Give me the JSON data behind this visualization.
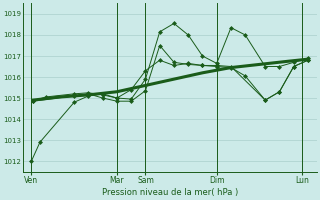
{
  "bg_color": "#cceae8",
  "grid_color": "#aacfcc",
  "line_color": "#1a5c1a",
  "xlabel_text": "Pression niveau de la mer( hPa )",
  "ylim": [
    1011.5,
    1019.5
  ],
  "yticks": [
    1012,
    1013,
    1014,
    1015,
    1016,
    1017,
    1018,
    1019
  ],
  "xtick_labels": [
    "Ven",
    "Mar",
    "Sam",
    "Dim",
    "Lun"
  ],
  "xtick_positions": [
    0.0,
    3.0,
    4.0,
    6.5,
    9.5
  ],
  "vlines_x": [
    0.0,
    3.0,
    4.0,
    6.5,
    9.5
  ],
  "xlim": [
    -0.3,
    10.0
  ],
  "s1_x": [
    0.0,
    0.3,
    1.5,
    2.0,
    2.5,
    3.0,
    3.5,
    4.0,
    4.5,
    5.0,
    5.5,
    6.0,
    6.5,
    7.0,
    7.5,
    8.2,
    8.7,
    9.2,
    9.7
  ],
  "s1_y": [
    1012.0,
    1012.9,
    1014.8,
    1015.1,
    1015.2,
    1015.0,
    1014.95,
    1015.9,
    1018.15,
    1018.55,
    1018.0,
    1017.0,
    1016.65,
    1018.35,
    1018.0,
    1016.5,
    1016.5,
    1016.7,
    1016.9
  ],
  "s2_x": [
    0.05,
    1.5,
    2.0,
    2.5,
    3.0,
    3.5,
    4.0,
    4.5,
    5.0,
    5.5,
    6.0,
    6.5,
    7.0,
    7.5,
    8.2,
    8.7,
    9.2,
    9.7
  ],
  "s2_y": [
    1014.85,
    1015.1,
    1015.2,
    1015.0,
    1014.85,
    1014.85,
    1015.35,
    1017.5,
    1016.7,
    1016.6,
    1016.55,
    1016.5,
    1016.45,
    1016.05,
    1014.9,
    1015.3,
    1016.5,
    1016.8
  ],
  "s3_x": [
    0.05,
    1.0,
    2.0,
    3.0,
    4.0,
    5.0,
    6.0,
    7.0,
    8.0,
    9.0,
    9.7
  ],
  "s3_y": [
    1014.9,
    1015.05,
    1015.15,
    1015.3,
    1015.6,
    1015.9,
    1016.2,
    1016.45,
    1016.6,
    1016.75,
    1016.85
  ],
  "s4_x": [
    0.05,
    0.5,
    1.5,
    2.0,
    2.5,
    3.0,
    3.5,
    4.0,
    4.5,
    5.0,
    5.5,
    6.0,
    6.5,
    7.0,
    8.2,
    8.7,
    9.2,
    9.7
  ],
  "s4_y": [
    1014.85,
    1015.05,
    1015.2,
    1015.25,
    1015.15,
    1015.0,
    1015.4,
    1016.3,
    1016.8,
    1016.55,
    1016.65,
    1016.55,
    1016.55,
    1016.5,
    1014.9,
    1015.3,
    1016.5,
    1016.8
  ]
}
